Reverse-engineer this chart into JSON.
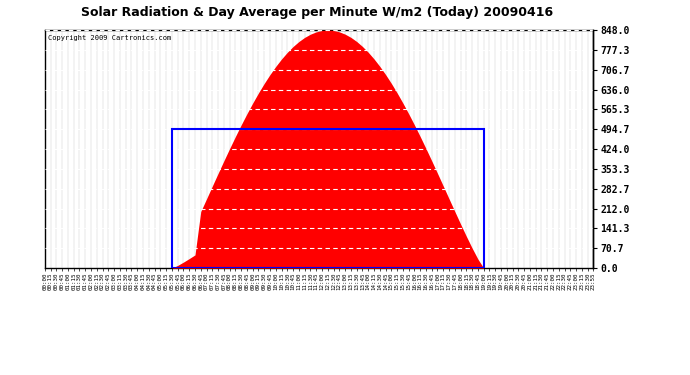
{
  "title": "Solar Radiation & Day Average per Minute W/m2 (Today) 20090416",
  "copyright": "Copyright 2009 Cartronics.com",
  "background_color": "#ffffff",
  "plot_bg_color": "#ffffff",
  "grid_color": "#c8c8c8",
  "fill_color": "#ff0000",
  "line_color": "#ff0000",
  "avg_rect_color": "#0000ff",
  "ytick_labels": [
    "0.0",
    "70.7",
    "141.3",
    "212.0",
    "282.7",
    "353.3",
    "424.0",
    "494.7",
    "565.3",
    "636.0",
    "706.7",
    "777.3",
    "848.0"
  ],
  "ytick_values": [
    0.0,
    70.7,
    141.3,
    212.0,
    282.7,
    353.3,
    424.0,
    494.7,
    565.3,
    636.0,
    706.7,
    777.3,
    848.0
  ],
  "ymax": 848.0,
  "ymin": 0.0,
  "avg_value": 494.7,
  "sunrise_index": 22,
  "sunset_index": 76,
  "total_points": 96,
  "xtick_labels": [
    "00:00",
    "00:15",
    "00:30",
    "00:45",
    "01:00",
    "01:15",
    "01:30",
    "01:45",
    "02:00",
    "02:15",
    "02:30",
    "02:45",
    "03:00",
    "03:15",
    "03:30",
    "03:45",
    "04:00",
    "04:15",
    "04:30",
    "04:45",
    "05:00",
    "05:15",
    "05:30",
    "05:45",
    "06:00",
    "06:15",
    "06:30",
    "06:45",
    "07:00",
    "07:15",
    "07:30",
    "07:45",
    "08:00",
    "08:15",
    "08:30",
    "08:45",
    "09:00",
    "09:15",
    "09:30",
    "09:45",
    "10:00",
    "10:15",
    "10:30",
    "10:45",
    "11:00",
    "11:15",
    "11:30",
    "11:45",
    "12:00",
    "12:15",
    "12:30",
    "12:45",
    "13:00",
    "13:15",
    "13:30",
    "13:45",
    "14:00",
    "14:15",
    "14:30",
    "14:45",
    "15:00",
    "15:15",
    "15:30",
    "15:45",
    "16:00",
    "16:15",
    "16:30",
    "16:45",
    "17:00",
    "17:15",
    "17:30",
    "17:45",
    "18:00",
    "18:15",
    "18:30",
    "18:45",
    "19:00",
    "19:15",
    "19:30",
    "19:45",
    "20:00",
    "20:15",
    "20:30",
    "20:45",
    "21:00",
    "21:15",
    "21:30",
    "21:45",
    "22:00",
    "22:15",
    "22:30",
    "22:45",
    "23:00",
    "23:15",
    "23:30",
    "23:55"
  ]
}
